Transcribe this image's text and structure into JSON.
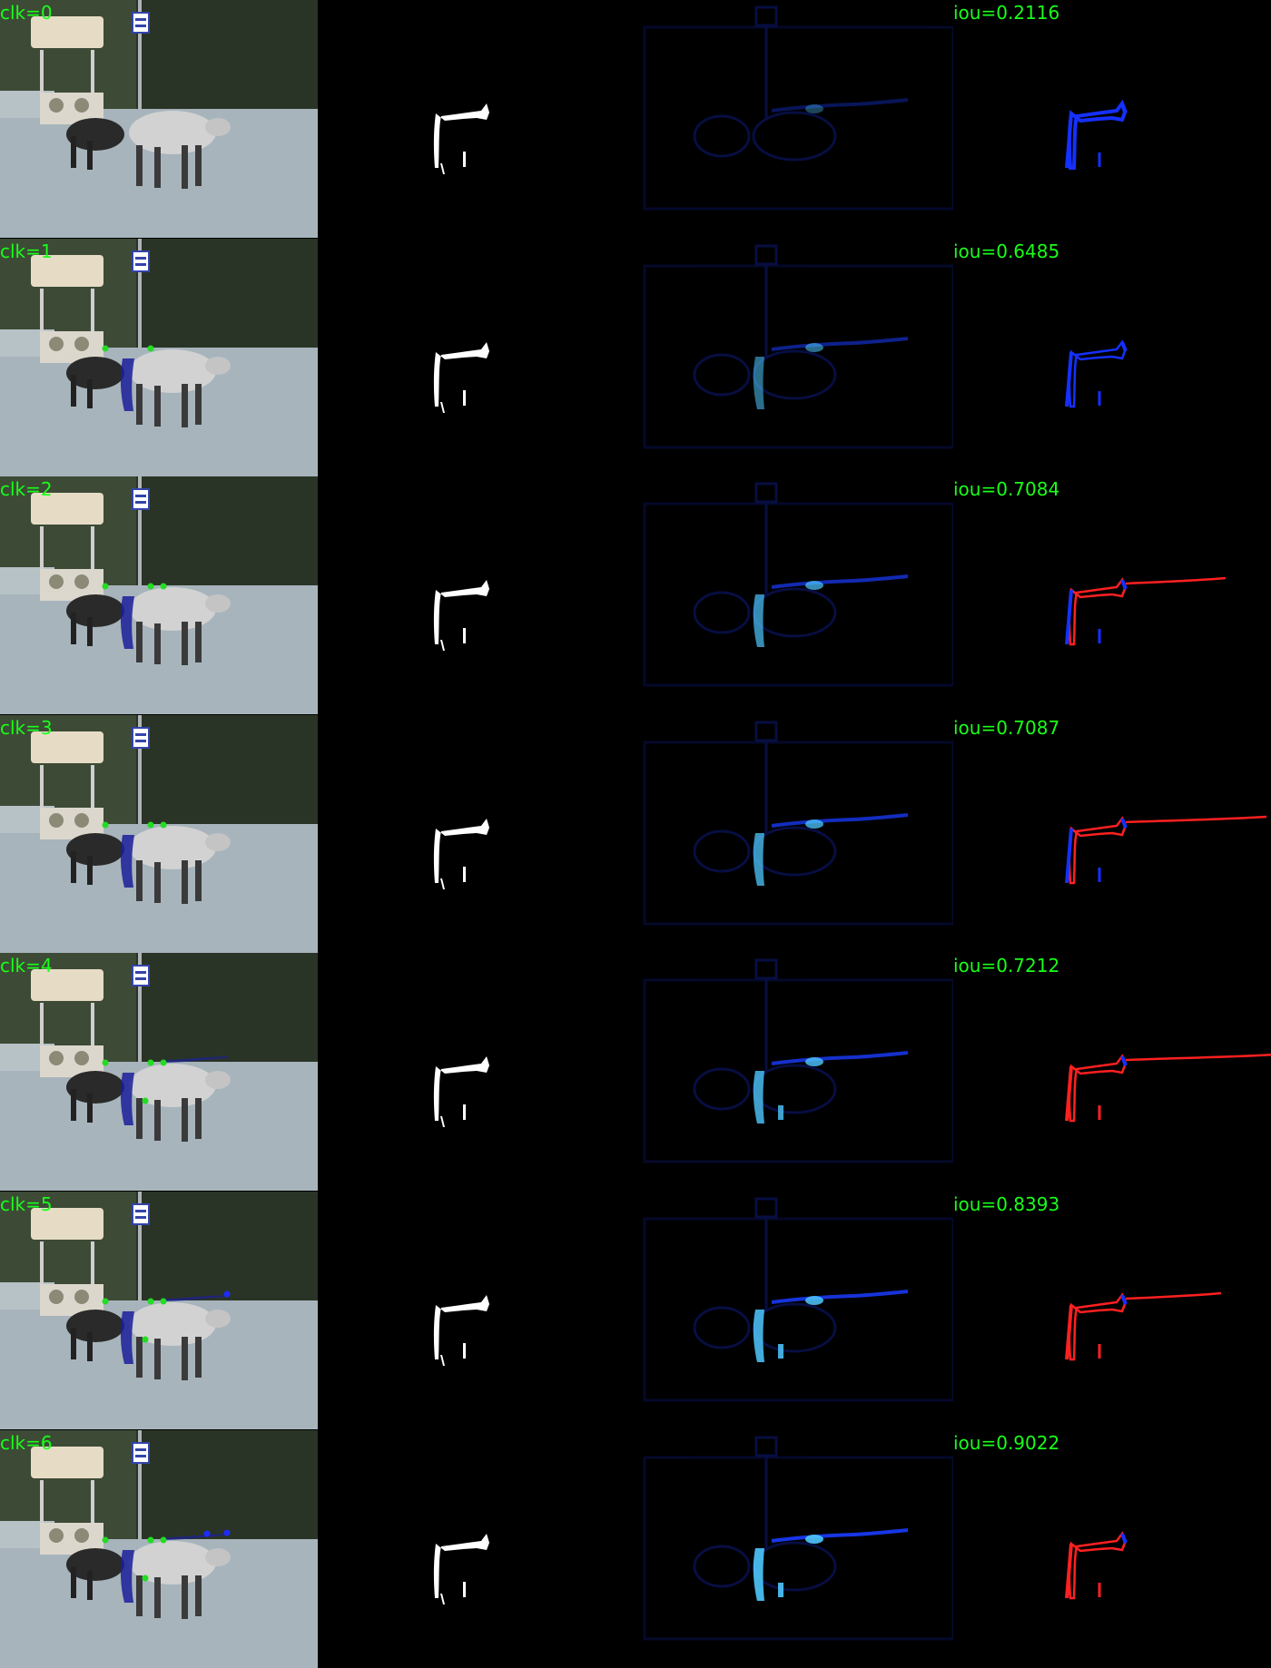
{
  "rows": [
    {
      "clk": "clk=0",
      "iou": "iou=0.2116"
    },
    {
      "clk": "clk=1",
      "iou": "iou=0.6485"
    },
    {
      "clk": "clk=2",
      "iou": "iou=0.7084"
    },
    {
      "clk": "clk=3",
      "iou": "iou=0.7087"
    },
    {
      "clk": "clk=4",
      "iou": "iou=0.7212"
    },
    {
      "clk": "clk=5",
      "iou": "iou=0.8393"
    },
    {
      "clk": "clk=6",
      "iou": "iou=0.9022"
    }
  ],
  "colors": {
    "label_green": "#19ff19",
    "click_point": "#22dd22",
    "prob_blue": "#1a3cff",
    "prob_cyan": "#4fc8ff",
    "error_red": "#ff2020",
    "error_blue": "#1530ff",
    "mask_white": "#ffffff"
  }
}
